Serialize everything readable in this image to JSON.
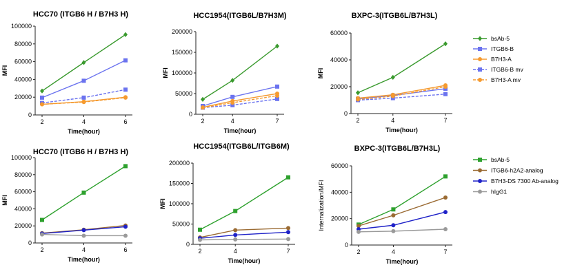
{
  "chart_data": [
    {
      "type": "line",
      "title": "HCC70 (ITGB6 H / B7H3 H)",
      "xlabel": "Time(hour)",
      "ylabel": "MFI",
      "x": [
        2,
        4,
        6
      ],
      "xticks": [
        "2",
        "4",
        "6"
      ],
      "ylim": [
        0,
        100000
      ],
      "yticks": [
        0,
        20000,
        40000,
        60000,
        80000,
        100000
      ],
      "series": [
        {
          "name": "bsAb-5",
          "values": [
            27000,
            59000,
            90500
          ],
          "color": "#3a9a2e",
          "marker": "diamond",
          "dash": false
        },
        {
          "name": "ITGB6-B",
          "values": [
            19500,
            38500,
            61500
          ],
          "color": "#6b73ef",
          "marker": "square",
          "dash": false
        },
        {
          "name": "B7H3-A",
          "values": [
            12000,
            15000,
            20000
          ],
          "color": "#f59a2f",
          "marker": "circle",
          "dash": false
        },
        {
          "name": "ITGB6-B mv",
          "values": [
            13500,
            19500,
            28500
          ],
          "color": "#6b73ef",
          "marker": "square",
          "dash": true
        },
        {
          "name": "B7H3-A mv",
          "values": [
            12000,
            14500,
            19500
          ],
          "color": "#f59a2f",
          "marker": "circle",
          "dash": true
        }
      ]
    },
    {
      "type": "line",
      "title": "HCC1954(ITGB6L/B7H3M)",
      "xlabel": "Time(hour)",
      "ylabel": "MFI",
      "x": [
        2,
        4,
        7
      ],
      "xticks": [
        "2",
        "4",
        "7"
      ],
      "ylim": [
        0,
        200000
      ],
      "yticks": [
        0,
        50000,
        100000,
        150000,
        200000
      ],
      "series": [
        {
          "name": "bsAb-5",
          "values": [
            36000,
            82000,
            165000
          ],
          "color": "#3a9a2e",
          "marker": "diamond",
          "dash": false
        },
        {
          "name": "ITGB6-B",
          "values": [
            20000,
            42000,
            67000
          ],
          "color": "#6b73ef",
          "marker": "square",
          "dash": false
        },
        {
          "name": "B7H3-A",
          "values": [
            17000,
            32000,
            50000
          ],
          "color": "#f59a2f",
          "marker": "circle",
          "dash": false
        },
        {
          "name": "ITGB6-B mv",
          "values": [
            16000,
            22000,
            37000
          ],
          "color": "#6b73ef",
          "marker": "square",
          "dash": true
        },
        {
          "name": "B7H3-A mv",
          "values": [
            16000,
            28000,
            45000
          ],
          "color": "#f59a2f",
          "marker": "circle",
          "dash": true
        }
      ]
    },
    {
      "type": "line",
      "title": "BXPC-3(ITGB6L/B7H3L)",
      "xlabel": "Time(hour)",
      "ylabel": "MFI",
      "x": [
        2,
        4,
        7
      ],
      "xticks": [
        "2",
        "4",
        "7"
      ],
      "ylim": [
        0,
        60000
      ],
      "yticks": [
        0,
        20000,
        40000,
        60000
      ],
      "series": [
        {
          "name": "bsAb-5",
          "values": [
            15500,
            27000,
            52000
          ],
          "color": "#3a9a2e",
          "marker": "diamond",
          "dash": false
        },
        {
          "name": "ITGB6-B",
          "values": [
            11000,
            13500,
            18500
          ],
          "color": "#6b73ef",
          "marker": "square",
          "dash": false
        },
        {
          "name": "B7H3-A",
          "values": [
            11500,
            14000,
            21000
          ],
          "color": "#f59a2f",
          "marker": "circle",
          "dash": false
        },
        {
          "name": "ITGB6-B mv",
          "values": [
            10000,
            11500,
            14500
          ],
          "color": "#6b73ef",
          "marker": "square",
          "dash": true
        },
        {
          "name": "B7H3-A mv",
          "values": [
            10500,
            13000,
            20000
          ],
          "color": "#f59a2f",
          "marker": "circle",
          "dash": true
        }
      ]
    },
    {
      "type": "line",
      "title": "HCC70 (ITGB6 H / B7H3 H)",
      "xlabel": "Time(hour)",
      "ylabel": "MFI",
      "x": [
        2,
        4,
        6
      ],
      "xticks": [
        "2",
        "4",
        "6"
      ],
      "ylim": [
        0,
        100000
      ],
      "yticks": [
        0,
        20000,
        40000,
        60000,
        80000,
        100000
      ],
      "series": [
        {
          "name": "bsAb-5",
          "values": [
            27000,
            59000,
            90000
          ],
          "color": "#2ea12e",
          "marker": "square",
          "dash": false
        },
        {
          "name": "ITGB6-h2A2-analog",
          "values": [
            11500,
            15500,
            20500
          ],
          "color": "#9a6a32",
          "marker": "circle",
          "dash": false
        },
        {
          "name": "B7H3-DS 7300 Ab-analog",
          "values": [
            11000,
            15000,
            19000
          ],
          "color": "#1f22c8",
          "marker": "circle",
          "dash": false
        },
        {
          "name": "hIgG1",
          "values": [
            10000,
            8500,
            8500
          ],
          "color": "#9a9a9a",
          "marker": "circle",
          "dash": false
        }
      ]
    },
    {
      "type": "line",
      "title": "HCC1954(ITGB6L/ITGB6M)",
      "xlabel": "Time(hour)",
      "ylabel": "MFI",
      "x": [
        2,
        4,
        7
      ],
      "xticks": [
        "2",
        "4",
        "7"
      ],
      "ylim": [
        0,
        200000
      ],
      "yticks": [
        0,
        50000,
        100000,
        150000,
        200000
      ],
      "series": [
        {
          "name": "bsAb-5",
          "values": [
            36000,
            82000,
            165000
          ],
          "color": "#2ea12e",
          "marker": "square",
          "dash": false
        },
        {
          "name": "ITGB6-h2A2-analog",
          "values": [
            17000,
            35000,
            40000
          ],
          "color": "#9a6a32",
          "marker": "circle",
          "dash": false
        },
        {
          "name": "B7H3-DS 7300 Ab-analog",
          "values": [
            15000,
            23000,
            30000
          ],
          "color": "#1f22c8",
          "marker": "circle",
          "dash": false
        },
        {
          "name": "hIgG1",
          "values": [
            11000,
            12000,
            13000
          ],
          "color": "#9a9a9a",
          "marker": "circle",
          "dash": false
        }
      ]
    },
    {
      "type": "line",
      "title": "BXPC-3(ITGB6L/B7H3L)",
      "xlabel": "Time(hour)",
      "ylabel": "Internalization/MFI",
      "x": [
        2,
        4,
        7
      ],
      "xticks": [
        "2",
        "4",
        "7"
      ],
      "ylim": [
        0,
        60000
      ],
      "yticks": [
        0,
        20000,
        40000,
        60000
      ],
      "series": [
        {
          "name": "bsAb-5",
          "values": [
            15500,
            27000,
            52000
          ],
          "color": "#2ea12e",
          "marker": "square",
          "dash": false
        },
        {
          "name": "ITGB6-h2A2-analog",
          "values": [
            14500,
            22500,
            36000
          ],
          "color": "#9a6a32",
          "marker": "circle",
          "dash": false
        },
        {
          "name": "B7H3-DS 7300 Ab-analog",
          "values": [
            12000,
            15000,
            25000
          ],
          "color": "#1f22c8",
          "marker": "circle",
          "dash": false
        },
        {
          "name": "hIgG1",
          "values": [
            10000,
            10500,
            12000
          ],
          "color": "#9a9a9a",
          "marker": "circle",
          "dash": false
        }
      ]
    }
  ],
  "legends": [
    {
      "items": [
        {
          "label": "bsAb-5",
          "color": "#3a9a2e",
          "marker": "diamond",
          "dash": false
        },
        {
          "label": "ITGB6-B",
          "color": "#6b73ef",
          "marker": "square",
          "dash": false
        },
        {
          "label": "B7H3-A",
          "color": "#f59a2f",
          "marker": "circle",
          "dash": false
        },
        {
          "label": "ITGB6-B mv",
          "color": "#6b73ef",
          "marker": "square",
          "dash": true
        },
        {
          "label": "B7H3-A mv",
          "color": "#f59a2f",
          "marker": "circle",
          "dash": true
        }
      ]
    },
    {
      "items": [
        {
          "label": "bsAb-5",
          "color": "#2ea12e",
          "marker": "square",
          "dash": false
        },
        {
          "label": "ITGB6-h2A2-analog",
          "color": "#9a6a32",
          "marker": "circle",
          "dash": false
        },
        {
          "label": "B7H3-DS 7300 Ab-analog",
          "color": "#1f22c8",
          "marker": "circle",
          "dash": false
        },
        {
          "label": "hIgG1",
          "color": "#9a9a9a",
          "marker": "circle",
          "dash": false
        }
      ]
    }
  ]
}
